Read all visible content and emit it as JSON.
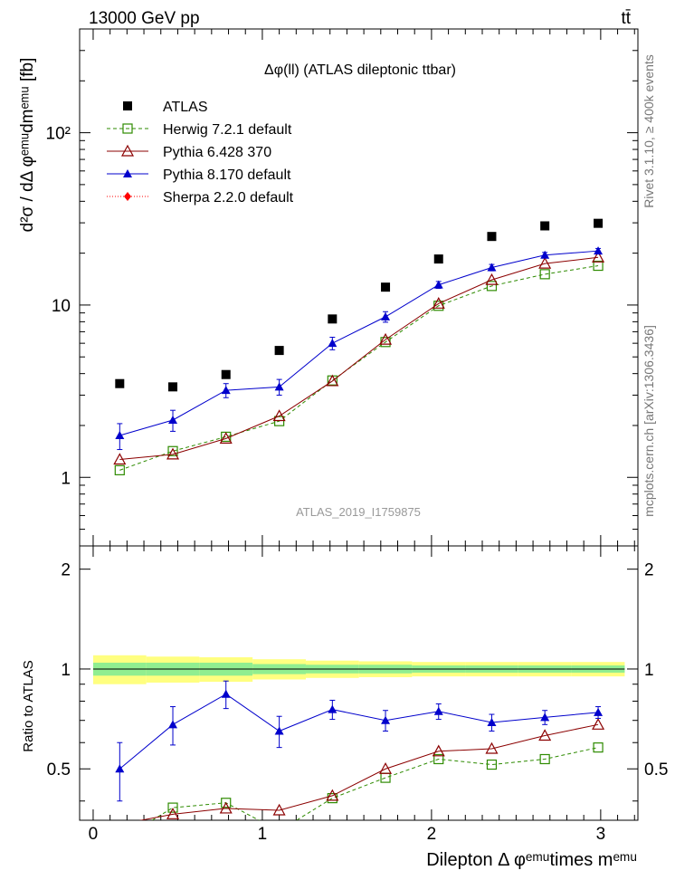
{
  "header": {
    "energy_label": "13000 GeV pp",
    "process_label": "tt̄"
  },
  "side_labels": {
    "rivet": "Rivet 3.1.10, ≥ 400k events",
    "mcplots": "mcplots.cern.ch [arXiv:1306.3436]"
  },
  "main_plot": {
    "title": "Δφ(ll) (ATLAS dileptonic ttbar)",
    "watermark": "ATLAS_2019_I1759875",
    "ylabel": "d²σ / dΔ φᵉᵐᵘdmᵉᵐᵘ [fb]",
    "yscale": "log",
    "ylim": [
      0.4,
      400
    ],
    "ytick_labels": [
      "1",
      "10",
      "10²"
    ]
  },
  "ratio_plot": {
    "ylabel": "Ratio to ATLAS",
    "ylim": [
      0.35,
      2.35
    ],
    "ytick_labels": [
      "0.5",
      "1",
      "2"
    ]
  },
  "x_axis": {
    "label": "Dilepton Δ φᵉᵐᵘtimes mᵉᵐᵘ",
    "xlim": [
      -0.08,
      3.22
    ],
    "tick_labels": [
      "0",
      "1",
      "2",
      "3"
    ]
  },
  "legend": {
    "placement": "top-left",
    "entries": [
      "ATLAS",
      "Herwig 7.2.1 default",
      "Pythia 6.428 370",
      "Pythia 8.170 default",
      "Sherpa 2.2.0 default"
    ]
  },
  "colors": {
    "atlas": "#000000",
    "herwig": "#2e8b00",
    "pythia6": "#8b0000",
    "pythia8": "#0000cc",
    "sherpa": "#ff0000",
    "band_inner": "#90ee90",
    "band_outer": "#ffff80"
  },
  "chart_data": [
    {
      "type": "scatter",
      "panel": "main",
      "title": "Δφ(ll) (ATLAS dileptonic ttbar)",
      "xlabel": "Dilepton Δ φᵉᵐᵘtimes mᵉᵐᵘ",
      "ylabel": "d²σ / dΔ φᵉᵐᵘdmᵉᵐᵘ [fb]",
      "yscale": "log",
      "ylim": [
        0.4,
        400
      ],
      "x": [
        0.157,
        0.471,
        0.785,
        1.1,
        1.414,
        1.728,
        2.042,
        2.356,
        2.67,
        2.985
      ],
      "series": [
        {
          "name": "ATLAS",
          "marker": "filled-square",
          "values": [
            3.5,
            3.35,
            3.95,
            5.45,
            8.3,
            12.7,
            18.5,
            25.0,
            28.8,
            29.8
          ]
        },
        {
          "name": "Herwig 7.2.1 default",
          "marker": "open-square",
          "style": "dashed",
          "values": [
            1.1,
            1.42,
            1.72,
            2.12,
            3.65,
            6.1,
            9.9,
            12.9,
            15.1,
            16.9
          ]
        },
        {
          "name": "Pythia 6.428 370",
          "marker": "open-triangle",
          "style": "solid",
          "values": [
            1.27,
            1.36,
            1.68,
            2.27,
            3.62,
            6.3,
            10.2,
            14.0,
            17.4,
            18.9
          ]
        },
        {
          "name": "Pythia 8.170 default",
          "marker": "filled-triangle",
          "style": "solid",
          "values": [
            1.75,
            2.15,
            3.2,
            3.35,
            6.0,
            8.55,
            13.1,
            16.5,
            19.5,
            20.6
          ],
          "errors": [
            0.3,
            0.3,
            0.3,
            0.35,
            0.5,
            0.6,
            0.6,
            0.7,
            0.7,
            0.7
          ]
        },
        {
          "name": "Sherpa 2.2.0 default",
          "marker": "filled-diamond",
          "style": "dotted",
          "values": []
        }
      ]
    },
    {
      "type": "line",
      "panel": "ratio",
      "ylabel": "Ratio to ATLAS",
      "ylim": [
        0.35,
        2.35
      ],
      "x": [
        0.157,
        0.471,
        0.785,
        1.1,
        1.414,
        1.728,
        2.042,
        2.356,
        2.67,
        2.985
      ],
      "band": {
        "inner": [
          0.045,
          0.045,
          0.045,
          0.035,
          0.03,
          0.03,
          0.025,
          0.025,
          0.025,
          0.025
        ],
        "outer": [
          0.1,
          0.09,
          0.085,
          0.07,
          0.06,
          0.055,
          0.05,
          0.05,
          0.05,
          0.05
        ]
      },
      "series": [
        {
          "name": "Herwig 7.2.1 default",
          "values": [
            0.305,
            0.382,
            0.395,
            0.325,
            0.408,
            0.47,
            0.535,
            0.515,
            0.535,
            0.58
          ]
        },
        {
          "name": "Pythia 6.428 370",
          "values": [
            0.34,
            0.365,
            0.38,
            0.375,
            0.415,
            0.5,
            0.565,
            0.575,
            0.63,
            0.68
          ]
        },
        {
          "name": "Pythia 8.170 default",
          "values": [
            0.5,
            0.68,
            0.84,
            0.65,
            0.755,
            0.7,
            0.745,
            0.69,
            0.715,
            0.74
          ],
          "errors": [
            0.1,
            0.09,
            0.08,
            0.07,
            0.05,
            0.05,
            0.04,
            0.04,
            0.035,
            0.03
          ]
        }
      ]
    }
  ]
}
